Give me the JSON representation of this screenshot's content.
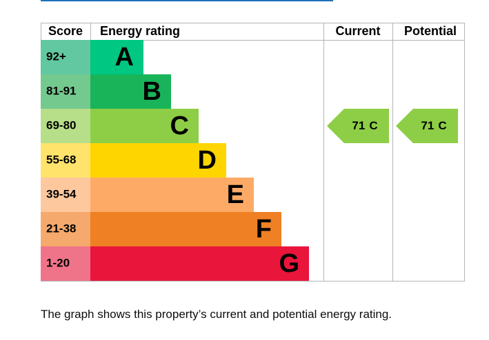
{
  "header": {
    "score": "Score",
    "rating": "Energy rating",
    "current": "Current",
    "potential": "Potential"
  },
  "bands": [
    {
      "score": "92+",
      "letter": "A",
      "color": "#00c781",
      "score_color": "#62c8a1"
    },
    {
      "score": "81-91",
      "letter": "B",
      "color": "#19b459",
      "score_color": "#74c98e"
    },
    {
      "score": "69-80",
      "letter": "C",
      "color": "#8dce46",
      "score_color": "#b7de89"
    },
    {
      "score": "55-68",
      "letter": "D",
      "color": "#ffd500",
      "score_color": "#ffe36b"
    },
    {
      "score": "39-54",
      "letter": "E",
      "color": "#fcaa65",
      "score_color": "#fdc89e"
    },
    {
      "score": "21-38",
      "letter": "F",
      "color": "#ef8023",
      "score_color": "#f5a96c"
    },
    {
      "score": "1-20",
      "letter": "G",
      "color": "#e9153b",
      "score_color": "#f07489"
    }
  ],
  "current": {
    "score": 71,
    "letter": "C"
  },
  "potential": {
    "score": 71,
    "letter": "C"
  },
  "caption": "The graph shows this property’s current and potential energy rating."
}
